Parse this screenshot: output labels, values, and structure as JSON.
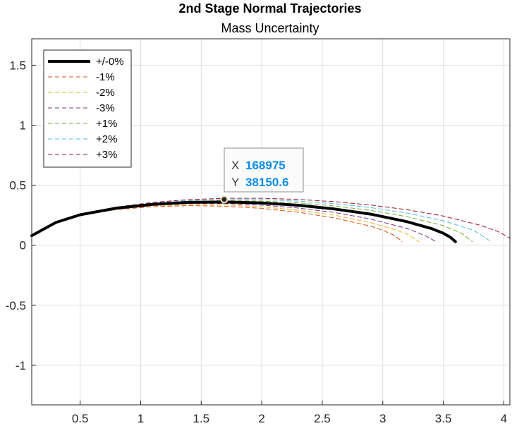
{
  "chart_data": {
    "type": "line",
    "title": "2nd Stage Normal Trajectories",
    "subtitle": "Mass Uncertainty",
    "xlabel": "",
    "ylabel": "",
    "x_scale_label": "×10⁵",
    "y_scale_label": "×10⁵",
    "xlim": [
      0.1,
      4.05
    ],
    "ylim": [
      -1.33,
      1.72
    ],
    "x_ticks": [
      "0.5",
      "1",
      "1.5",
      "2",
      "2.5",
      "3",
      "3.5",
      "4"
    ],
    "y_ticks": [
      "1.5",
      "1",
      "0.5",
      "0",
      "-0.5",
      "-1"
    ],
    "grid": true,
    "legend_position": "top-left",
    "series": [
      {
        "name": "+/-0%",
        "color": "#000000",
        "style": "solid",
        "x": [
          0.1,
          0.3,
          0.5,
          0.8,
          1.1,
          1.4,
          1.7,
          2.0,
          2.3,
          2.6,
          2.9,
          3.2,
          3.4,
          3.5,
          3.56,
          3.6
        ],
        "y": [
          0.08,
          0.19,
          0.254,
          0.309,
          0.341,
          0.357,
          0.36,
          0.352,
          0.333,
          0.302,
          0.259,
          0.196,
          0.14,
          0.1,
          0.065,
          0.03
        ]
      },
      {
        "name": "-1%",
        "color": "#d95319",
        "style": "dashed",
        "x": [
          0.1,
          0.3,
          0.5,
          0.8,
          1.1,
          1.4,
          1.7,
          2.0,
          2.3,
          2.6,
          2.9,
          3.0,
          3.1,
          3.16
        ],
        "y": [
          0.08,
          0.19,
          0.25,
          0.297,
          0.321,
          0.33,
          0.325,
          0.307,
          0.275,
          0.228,
          0.158,
          0.125,
          0.08,
          0.03
        ]
      },
      {
        "name": "-2%",
        "color": "#edb120",
        "style": "dashed",
        "x": [
          0.1,
          0.3,
          0.5,
          0.8,
          1.1,
          1.4,
          1.7,
          2.0,
          2.3,
          2.6,
          2.9,
          3.1,
          3.2,
          3.3
        ],
        "y": [
          0.08,
          0.19,
          0.252,
          0.301,
          0.329,
          0.339,
          0.336,
          0.32,
          0.292,
          0.25,
          0.188,
          0.13,
          0.092,
          0.03
        ]
      },
      {
        "name": "-3%",
        "color": "#7e2f8e",
        "style": "dashed",
        "x": [
          0.1,
          0.3,
          0.5,
          0.8,
          1.1,
          1.4,
          1.7,
          2.0,
          2.3,
          2.6,
          2.9,
          3.2,
          3.35,
          3.44
        ],
        "y": [
          0.08,
          0.19,
          0.253,
          0.305,
          0.334,
          0.347,
          0.347,
          0.335,
          0.31,
          0.273,
          0.218,
          0.14,
          0.08,
          0.03
        ]
      },
      {
        "name": "+1%",
        "color": "#77ac30",
        "style": "dashed",
        "x": [
          0.1,
          0.3,
          0.5,
          0.8,
          1.1,
          1.4,
          1.7,
          2.0,
          2.3,
          2.6,
          2.9,
          3.2,
          3.5,
          3.65,
          3.74
        ],
        "y": [
          0.08,
          0.19,
          0.255,
          0.312,
          0.347,
          0.366,
          0.372,
          0.368,
          0.353,
          0.327,
          0.29,
          0.238,
          0.163,
          0.1,
          0.03
        ]
      },
      {
        "name": "+2%",
        "color": "#4dbeee",
        "style": "dashed",
        "x": [
          0.1,
          0.3,
          0.5,
          0.8,
          1.1,
          1.4,
          1.7,
          2.0,
          2.3,
          2.6,
          2.9,
          3.2,
          3.5,
          3.75,
          3.88
        ],
        "y": [
          0.08,
          0.19,
          0.256,
          0.315,
          0.352,
          0.373,
          0.382,
          0.38,
          0.368,
          0.346,
          0.313,
          0.268,
          0.204,
          0.125,
          0.04
        ]
      },
      {
        "name": "+3%",
        "color": "#a2142f",
        "style": "dashed",
        "x": [
          0.1,
          0.3,
          0.5,
          0.8,
          1.1,
          1.4,
          1.7,
          2.0,
          2.3,
          2.6,
          2.9,
          3.2,
          3.5,
          3.8,
          3.95,
          4.05
        ],
        "y": [
          0.08,
          0.19,
          0.257,
          0.318,
          0.357,
          0.38,
          0.391,
          0.391,
          0.382,
          0.363,
          0.335,
          0.296,
          0.243,
          0.168,
          0.115,
          0.06
        ]
      }
    ],
    "datatip": {
      "x_key": "X",
      "y_key": "Y",
      "x_value": "168975",
      "y_value": "38150.6",
      "point": [
        1.69,
        0.3815
      ]
    }
  }
}
